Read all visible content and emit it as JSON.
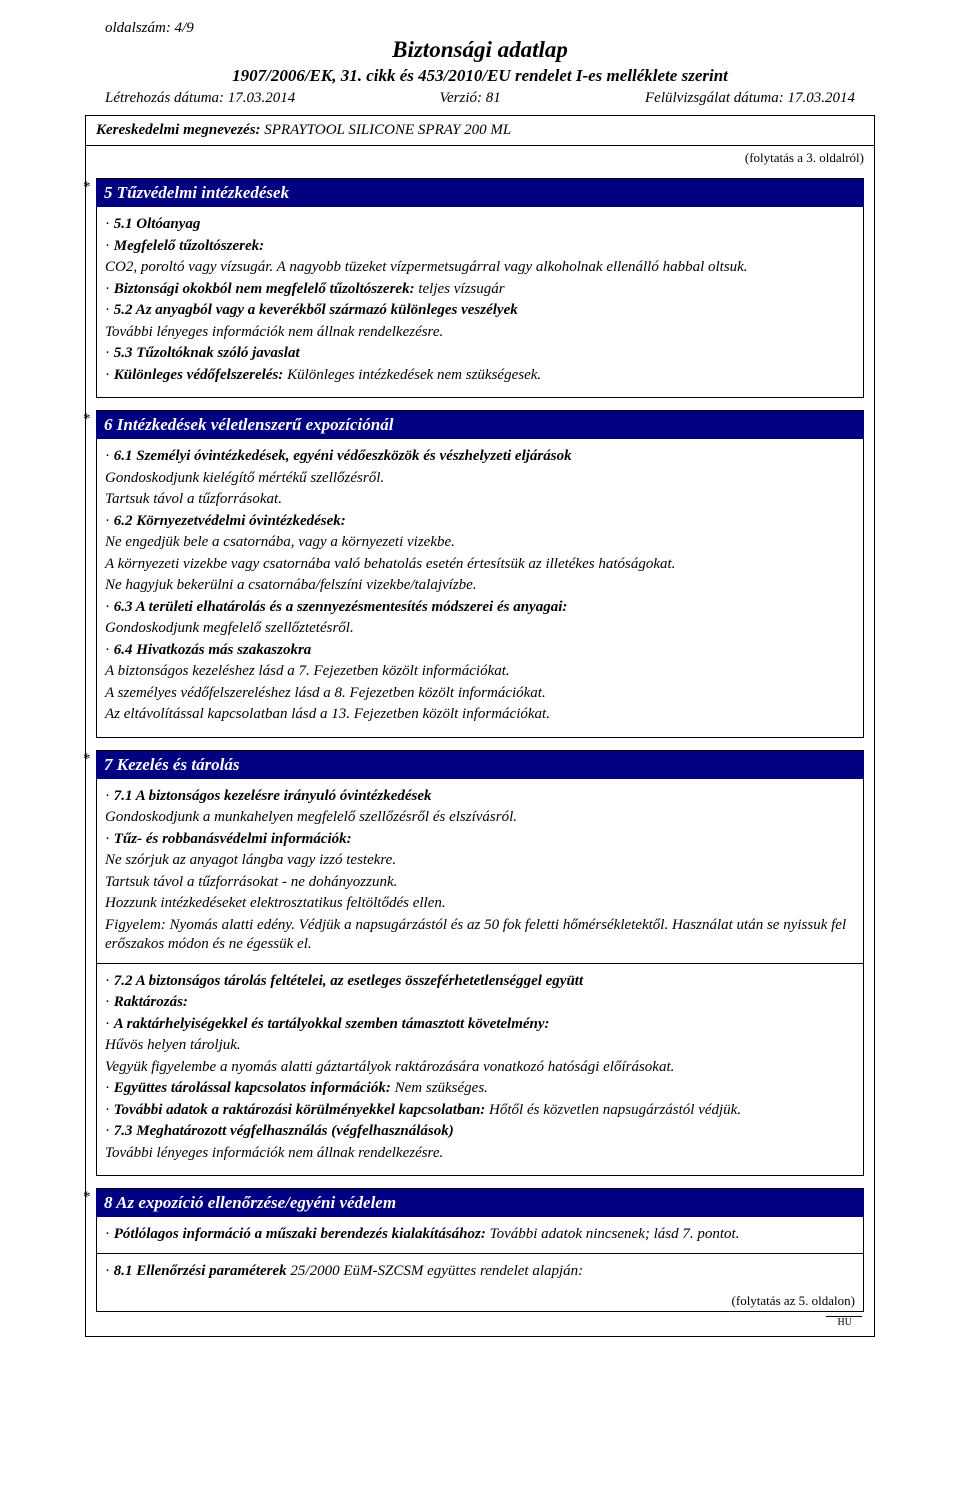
{
  "header": {
    "page_num": "oldalszám: 4/9",
    "title": "Biztonsági adatlap",
    "subtitle": "1907/2006/EK, 31. cikk és 453/2010/EU rendelet I-es melléklete szerint",
    "created": "Létrehozás dátuma: 17.03.2014",
    "version": "Verzió: 81",
    "revised": "Felülvizsgálat dátuma: 17.03.2014"
  },
  "trade": {
    "label": "Kereskedelmi megnevezés:",
    "value": "SPRAYTOOL SILICONE SPRAY 200 ML"
  },
  "cont_from": "(folytatás a 3. oldalról)",
  "colors": {
    "section_header_bg": "#000080",
    "section_header_fg": "#ffffff"
  },
  "s5": {
    "title": "5 Tűzvédelmi intézkedések",
    "p1a": "5.1 Oltóanyag",
    "p1b": "Megfelelő tűzoltószerek:",
    "p1c": "CO2, poroltó vagy vízsugár. A nagyobb tüzeket vízpermetsugárral vagy alkoholnak ellenálló habbal oltsuk.",
    "p2a": "Biztonsági okokból nem megfelelő tűzoltószerek:",
    "p2b": "teljes vízsugár",
    "p3a": "5.2 Az anyagból vagy a keverékből származó különleges veszélyek",
    "p3b": "További lényeges információk nem állnak rendelkezésre.",
    "p4a": "5.3 Tűzoltóknak szóló javaslat",
    "p5a": "Különleges védőfelszerelés:",
    "p5b": "Különleges intézkedések nem szükségesek."
  },
  "s6": {
    "title": "6 Intézkedések véletlenszerű expozíciónál",
    "p1a": "6.1 Személyi óvintézkedések, egyéni védőeszközök és vészhelyzeti eljárások",
    "p1b": "Gondoskodjunk kielégítő mértékű szellőzésről.",
    "p1c": "Tartsuk távol a tűzforrásokat.",
    "p2a": "6.2 Környezetvédelmi óvintézkedések:",
    "p2b": "Ne engedjük bele a csatornába, vagy a környezeti vizekbe.",
    "p2c": "A környezeti vizekbe vagy csatornába való behatolás esetén értesítsük az illetékes hatóságokat.",
    "p2d": "Ne hagyjuk bekerülni a csatornába/felszíni vizekbe/talajvízbe.",
    "p3a": "6.3 A területi elhatárolás és a szennyezésmentesítés módszerei és anyagai:",
    "p3b": "Gondoskodjunk megfelelő szellőztetésről.",
    "p4a": "6.4 Hivatkozás más szakaszokra",
    "p4b": "A biztonságos kezeléshez lásd a 7. Fejezetben közölt információkat.",
    "p4c": "A személyes védőfelszereléshez lásd a 8. Fejezetben közölt információkat.",
    "p4d": "Az eltávolítással kapcsolatban lásd a 13. Fejezetben közölt információkat."
  },
  "s7": {
    "title": "7 Kezelés és tárolás",
    "p1a": "7.1 A biztonságos kezelésre irányuló óvintézkedések",
    "p1b": "Gondoskodjunk a munkahelyen megfelelő szellőzésről és elszívásról.",
    "p2a": "Tűz- és robbanásvédelmi információk:",
    "p2b": "Ne szórjuk az anyagot lángba vagy izzó testekre.",
    "p2c": "Tartsuk távol a tűzforrásokat - ne dohányozzunk.",
    "p2d": "Hozzunk intézkedéseket elektrosztatikus feltöltődés ellen.",
    "p2e": "Figyelem: Nyomás alatti edény. Védjük a napsugárzástól és az 50 fok feletti hőmérsékletektől. Használat után se nyissuk fel erőszakos módon és ne égessük el.",
    "p3a": "7.2 A biztonságos tárolás feltételei, az esetleges összeférhetetlenséggel együtt",
    "p3b": "Raktározás:",
    "p3c": "A raktárhelyiségekkel és tartályokkal szemben támasztott követelmény:",
    "p3d": "Hűvös helyen tároljuk.",
    "p3e": "Vegyük figyelembe a nyomás alatti gáztartályok raktározására vonatkozó hatósági előírásokat.",
    "p4a": "Együttes tárolással kapcsolatos információk:",
    "p4b": "Nem szükséges.",
    "p5a": "További adatok a raktározási körülményekkel kapcsolatban:",
    "p5b": "Hőtől és közvetlen napsugárzástól védjük.",
    "p6a": "7.3 Meghatározott végfelhasználás (végfelhasználások)",
    "p6b": "További lényeges információk nem állnak rendelkezésre."
  },
  "s8": {
    "title": "8 Az expozíció ellenőrzése/egyéni védelem",
    "p1a": "Pótlólagos információ a műszaki berendezés kialakításához:",
    "p1b": "További adatok nincsenek; lásd 7. pontot.",
    "p2a": "8.1 Ellenőrzési paraméterek",
    "p2b": "25/2000 EüM-SZCSM együttes rendelet alapján:"
  },
  "cont_next": "(folytatás az 5. oldalon)",
  "hu": "HU"
}
